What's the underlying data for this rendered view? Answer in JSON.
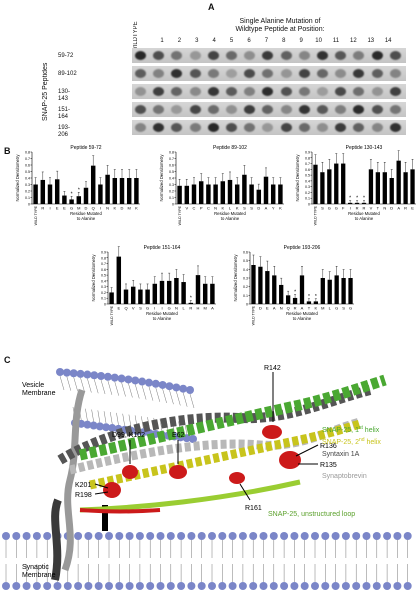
{
  "panel_a": {
    "letter": "A",
    "wildtype": "WILDTYPE",
    "header_line1": "Single Alanine Mutation of",
    "header_line2": "Wildtype Peptide at Position:",
    "positions": [
      "1",
      "2",
      "3",
      "4",
      "5",
      "6",
      "7",
      "8",
      "9",
      "10",
      "11",
      "12",
      "13",
      "14"
    ],
    "side_label": "SNAP-25 Peptides",
    "rows": [
      "59-72",
      "89-102",
      "130-143",
      "151-164",
      "193-206"
    ]
  },
  "panel_b": {
    "letter": "B",
    "ylabel": "Normalized Densitometry",
    "xlabel_line1": "Residue Mutated",
    "xlabel_line2": "to Alanine"
  },
  "chart_data": [
    {
      "type": "bar",
      "title": "Peptide 59-72",
      "ylim": [
        0,
        0.8
      ],
      "ticks": [
        "0",
        "0.1",
        "0.2",
        "0.3",
        "0.4",
        "0.5",
        "0.6",
        "0.7",
        "0.8"
      ],
      "categories": [
        "WILD TYPE",
        "R",
        "I",
        "E",
        "E",
        "G",
        "M",
        "D",
        "Q",
        "I",
        "N",
        "K",
        "D",
        "M",
        "K"
      ],
      "values": [
        0.3,
        0.37,
        0.3,
        0.38,
        0.13,
        0.07,
        0.12,
        0.25,
        0.59,
        0.3,
        0.45,
        0.4,
        0.4,
        0.4,
        0.4
      ],
      "stars": [
        5,
        6
      ]
    },
    {
      "type": "bar",
      "title": "Peptide 89-102",
      "ylim": [
        0,
        0.8
      ],
      "ticks": [
        "0",
        "0.1",
        "0.2",
        "0.3",
        "0.4",
        "0.5",
        "0.6",
        "0.7",
        "0.8"
      ],
      "categories": [
        "WILD TYPE",
        "V",
        "C",
        "P",
        "C",
        "N",
        "K",
        "L",
        "K",
        "S",
        "S",
        "D",
        "A",
        "Y",
        "K"
      ],
      "values": [
        0.28,
        0.28,
        0.3,
        0.35,
        0.3,
        0.3,
        0.35,
        0.37,
        0.3,
        0.45,
        0.3,
        0.22,
        0.42,
        0.3,
        0.3
      ],
      "stars": []
    },
    {
      "type": "bar",
      "title": "Peptide 130-143",
      "ylim": [
        0,
        0.9
      ],
      "ticks": [
        "0",
        "0.1",
        "0.2",
        "0.3",
        "0.4",
        "0.5",
        "0.6",
        "0.7",
        "0.8",
        "0.9"
      ],
      "categories": [
        "WILD TYPE",
        "S",
        "G",
        "G",
        "F",
        "I",
        "R",
        "R",
        "V",
        "T",
        "N",
        "D",
        "A",
        "R",
        "E"
      ],
      "values": [
        0.68,
        0.55,
        0.6,
        0.7,
        0.7,
        0.02,
        0.02,
        0.02,
        0.6,
        0.55,
        0.55,
        0.45,
        0.75,
        0.55,
        0.6
      ],
      "stars": [
        5,
        6,
        7
      ]
    },
    {
      "type": "bar",
      "title": "Peptide 151-164",
      "ylim": [
        0,
        0.9
      ],
      "ticks": [
        "0",
        "0.1",
        "0.2",
        "0.3",
        "0.4",
        "0.5",
        "0.6",
        "0.7",
        "0.8",
        "0.9"
      ],
      "categories": [
        "WILD TYPE",
        "E",
        "Q",
        "V",
        "S",
        "G",
        "I",
        "I",
        "G",
        "N",
        "L",
        "R",
        "H",
        "M",
        "A"
      ],
      "values": [
        0.2,
        0.82,
        0.25,
        0.3,
        0.25,
        0.25,
        0.35,
        0.4,
        0.4,
        0.45,
        0.38,
        0.02,
        0.5,
        0.35,
        0.35
      ],
      "stars": [
        11
      ]
    },
    {
      "type": "bar",
      "title": "Peptide 193-206",
      "ylim": [
        0,
        0.6
      ],
      "ticks": [
        "0",
        "0.1",
        "0.2",
        "0.3",
        "0.4",
        "0.5",
        "0.6"
      ],
      "categories": [
        "WILD TYPE",
        "D",
        "E",
        "A",
        "N",
        "Q",
        "R",
        "A",
        "T",
        "K",
        "M",
        "L",
        "G",
        "S",
        "G"
      ],
      "values": [
        0.45,
        0.43,
        0.38,
        0.33,
        0.22,
        0.1,
        0.07,
        0.33,
        0.03,
        0.03,
        0.3,
        0.28,
        0.33,
        0.3,
        0.3
      ],
      "stars": [
        6,
        8,
        9
      ]
    }
  ],
  "panel_c": {
    "letter": "C",
    "vesicle_membrane_1": "Vesicle",
    "vesicle_membrane_2": "Membrane",
    "synaptic_membrane_1": "Synaptic",
    "synaptic_membrane_2": "Membrane",
    "labels": {
      "r142": "R142",
      "e62": "E62",
      "d99": "D99, K102",
      "k201": "K201",
      "r198": "R198",
      "r136": "R136",
      "r135": "R135",
      "r161": "R161",
      "helix1": "SNAP-25, 1",
      "helix1_sup": "st",
      "helix1_end": " helix",
      "helix2": "SNAP-25, 2",
      "helix2_sup": "nd",
      "helix2_end": " helix",
      "syntaxin": "Syntaxin 1A",
      "synaptobrevin": "Synaptobrevin",
      "loop": "SNAP-25, unstructured loop"
    },
    "colors": {
      "helix1": "#4aa832",
      "helix2": "#c8c41c",
      "syntaxin": "#555555",
      "synaptobrevin": "#b8b8b8",
      "loop": "#9acd32",
      "residue": "#cc1a1a",
      "membrane": "#7b86c8"
    }
  }
}
